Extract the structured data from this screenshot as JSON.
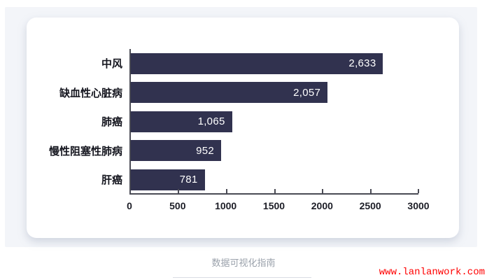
{
  "chart_data": {
    "type": "bar",
    "orientation": "horizontal",
    "title": "",
    "categories": [
      "中风",
      "缺血性心脏病",
      "肺癌",
      "慢性阻塞性肺病",
      "肝癌"
    ],
    "values": [
      2633,
      2057,
      1065,
      952,
      781
    ],
    "value_labels": [
      "2,633",
      "2,057",
      "1,065",
      "952",
      "781"
    ],
    "x_ticks": [
      "0",
      "500",
      "1000",
      "1500",
      "2000",
      "2500",
      "3000"
    ],
    "x_tick_values": [
      0,
      500,
      1000,
      1500,
      2000,
      2500,
      3000
    ],
    "xlim": [
      0,
      3000
    ],
    "grid": false,
    "legend": false,
    "bar_color": "#31324f",
    "value_label_position": "inside-end"
  },
  "footer": {
    "caption": "数据可视化指南",
    "watermark": "www.lanlanwork.com"
  },
  "colors": {
    "page_background": "#ffffff",
    "panel_background": "#f3f5f9",
    "card_background": "#ffffff",
    "bar": "#31324f",
    "axis": "#4a4b55",
    "label_text": "#15161f",
    "value_text": "#ffffff",
    "caption_text": "#9aa1ab",
    "watermark_text": "#ff0000"
  }
}
